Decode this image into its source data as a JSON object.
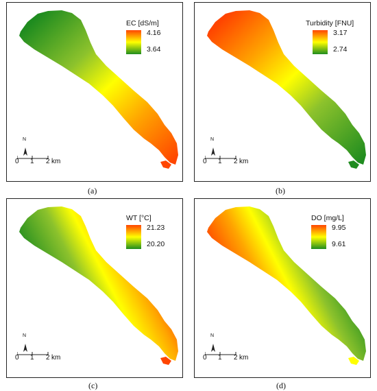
{
  "panels": [
    {
      "caption": "(a)",
      "legend": {
        "title": "EC [dS/m]",
        "max": "4.16",
        "min": "3.64"
      },
      "scale": {
        "north": "N",
        "ticks": [
          "0",
          "1",
          "2"
        ],
        "unit": "km"
      },
      "color_ramp": {
        "high": "#ff4500",
        "mid": "#ffff00",
        "low": "#1f8c1f"
      }
    },
    {
      "caption": "(b)",
      "legend": {
        "title": "Turbidity [FNU]",
        "max": "3.17",
        "min": "2.74"
      },
      "scale": {
        "north": "N",
        "ticks": [
          "0",
          "1",
          "2"
        ],
        "unit": "km"
      },
      "color_ramp": {
        "high": "#ff4500",
        "mid": "#ffff00",
        "low": "#1f8c1f"
      }
    },
    {
      "caption": "(c)",
      "legend": {
        "title": "WT [°C]",
        "max": "21.23",
        "min": "20.20"
      },
      "scale": {
        "north": "N",
        "ticks": [
          "0",
          "1",
          "2"
        ],
        "unit": "km"
      },
      "color_ramp": {
        "high": "#ff4500",
        "mid": "#ffff00",
        "low": "#1f8c1f"
      }
    },
    {
      "caption": "(d)",
      "legend": {
        "title": "DO [mg/L]",
        "max": "9.95",
        "min": "9.61"
      },
      "scale": {
        "north": "N",
        "ticks": [
          "0",
          "1",
          "2"
        ],
        "unit": "km"
      },
      "color_ramp": {
        "high": "#ff4500",
        "mid": "#ffff00",
        "low": "#1f8c1f"
      }
    }
  ]
}
